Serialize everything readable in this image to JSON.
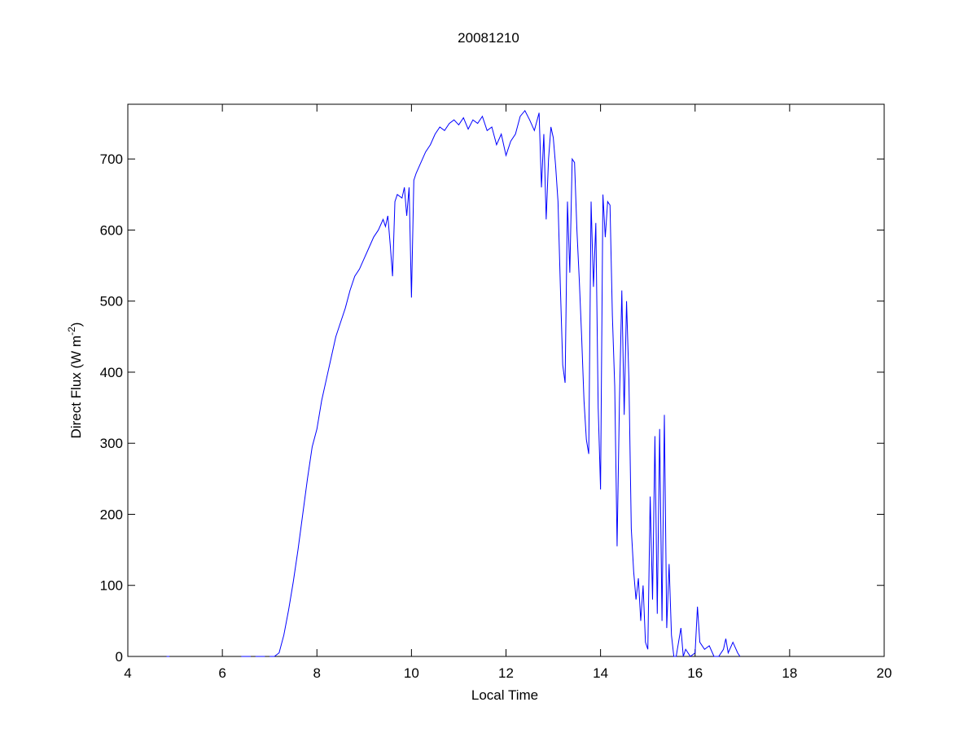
{
  "chart_data": {
    "type": "line",
    "title": "20081210",
    "xlabel": "Local Time",
    "ylabel": {
      "text": "Direct Flux (W m",
      "sup": "-2",
      "end": ")"
    },
    "xlim": [
      4,
      20
    ],
    "xticks": [
      4,
      6,
      8,
      10,
      12,
      14,
      16,
      18,
      20
    ],
    "ylim": [
      0,
      777
    ],
    "yticks": [
      0,
      100,
      200,
      300,
      400,
      500,
      600,
      700
    ],
    "grid": false,
    "series": [
      {
        "color": "#0000ff",
        "x": [
          4.82,
          4.88,
          5.0,
          6.4,
          6.6,
          6.65,
          6.7,
          6.9,
          6.95,
          7.0,
          7.1,
          7.2,
          7.3,
          7.4,
          7.5,
          7.6,
          7.7,
          7.8,
          7.9,
          8.0,
          8.1,
          8.2,
          8.3,
          8.4,
          8.5,
          8.6,
          8.7,
          8.8,
          8.9,
          9.0,
          9.1,
          9.2,
          9.3,
          9.4,
          9.45,
          9.5,
          9.55,
          9.6,
          9.65,
          9.7,
          9.8,
          9.85,
          9.9,
          9.95,
          10.0,
          10.05,
          10.1,
          10.2,
          10.3,
          10.4,
          10.5,
          10.6,
          10.7,
          10.8,
          10.9,
          11.0,
          11.1,
          11.2,
          11.3,
          11.4,
          11.5,
          11.6,
          11.7,
          11.8,
          11.9,
          12.0,
          12.1,
          12.2,
          12.3,
          12.4,
          12.5,
          12.6,
          12.7,
          12.75,
          12.8,
          12.85,
          12.9,
          12.95,
          13.0,
          13.05,
          13.1,
          13.15,
          13.2,
          13.25,
          13.3,
          13.35,
          13.4,
          13.45,
          13.5,
          13.55,
          13.6,
          13.65,
          13.7,
          13.75,
          13.8,
          13.85,
          13.9,
          13.95,
          14.0,
          14.05,
          14.1,
          14.15,
          14.2,
          14.25,
          14.3,
          14.35,
          14.4,
          14.45,
          14.5,
          14.55,
          14.6,
          14.65,
          14.7,
          14.75,
          14.8,
          14.85,
          14.9,
          14.95,
          15.0,
          15.05,
          15.1,
          15.15,
          15.2,
          15.25,
          15.3,
          15.35,
          15.4,
          15.45,
          15.5,
          15.55,
          15.6,
          15.7,
          15.75,
          15.8,
          15.9,
          16.0,
          16.05,
          16.1,
          16.2,
          16.3,
          16.4,
          16.5,
          16.6,
          16.65,
          16.7,
          16.8,
          16.9,
          16.95
        ],
        "values": [
          0,
          0,
          null,
          0,
          0,
          null,
          0,
          0,
          null,
          0,
          0,
          5,
          30,
          65,
          105,
          150,
          200,
          250,
          295,
          320,
          360,
          390,
          420,
          450,
          470,
          490,
          515,
          535,
          545,
          560,
          575,
          590,
          600,
          615,
          605,
          620,
          580,
          535,
          640,
          650,
          645,
          660,
          620,
          660,
          505,
          670,
          680,
          695,
          710,
          720,
          735,
          745,
          740,
          750,
          755,
          748,
          758,
          742,
          755,
          750,
          760,
          740,
          745,
          720,
          735,
          705,
          725,
          735,
          760,
          768,
          755,
          740,
          765,
          660,
          735,
          615,
          700,
          745,
          730,
          690,
          640,
          520,
          410,
          385,
          640,
          540,
          700,
          695,
          600,
          530,
          450,
          360,
          305,
          285,
          640,
          520,
          610,
          350,
          235,
          650,
          590,
          640,
          635,
          480,
          380,
          155,
          360,
          515,
          340,
          500,
          390,
          180,
          120,
          80,
          110,
          50,
          100,
          20,
          10,
          225,
          80,
          310,
          60,
          320,
          50,
          340,
          40,
          130,
          30,
          0,
          0,
          40,
          0,
          10,
          0,
          5,
          70,
          20,
          10,
          15,
          0,
          0,
          10,
          25,
          5,
          20,
          5,
          0
        ]
      }
    ]
  }
}
